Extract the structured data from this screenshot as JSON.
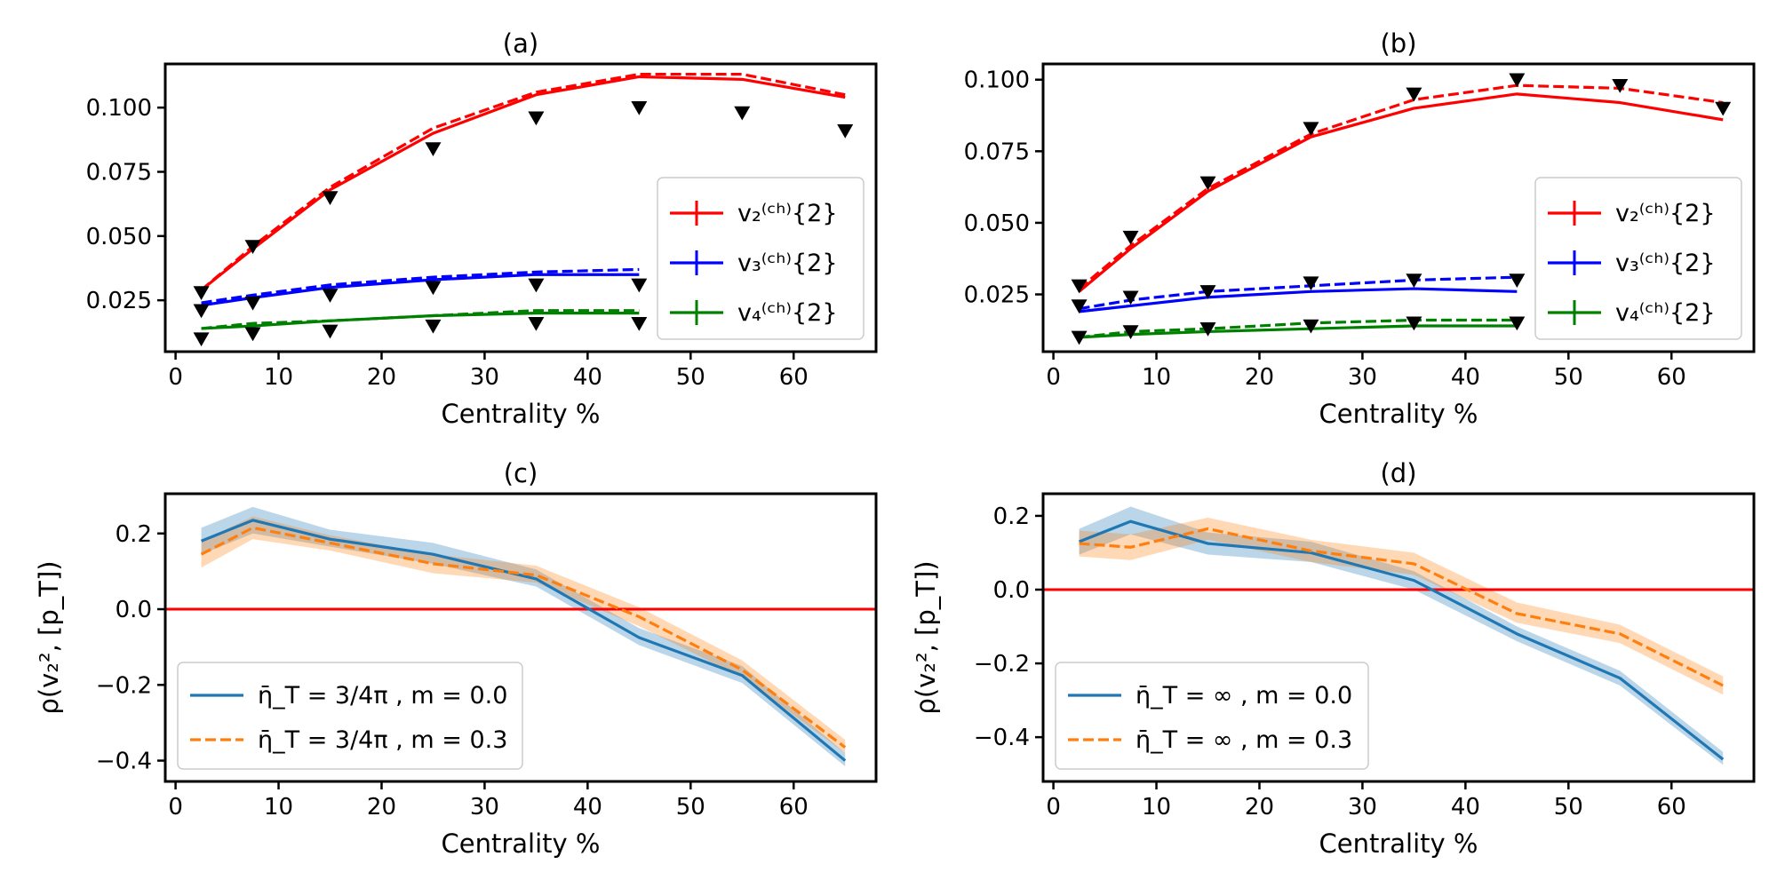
{
  "colors": {
    "red": "#ff0000",
    "blue": "#0000ff",
    "green": "#008000",
    "mpl_blue": "#1f77b4",
    "mpl_orange": "#ff7f0e",
    "data": "#000000"
  },
  "chart_data": [
    {
      "id": "a",
      "type": "line",
      "title": "(a)",
      "xlabel": "Centrality %",
      "ylabel": "",
      "xlim": [
        -1,
        68
      ],
      "ylim": [
        0.005,
        0.117
      ],
      "xticks": [
        0,
        10,
        20,
        30,
        40,
        50,
        60
      ],
      "yticks": [
        0.025,
        0.05,
        0.075,
        0.1
      ],
      "ytick_labels": [
        "0.025",
        "0.050",
        "0.075",
        "0.100"
      ],
      "legend_position": "lower-right",
      "legend": [
        {
          "text": "v₂⁽ᶜʰ⁾{2}",
          "color": "#ff0000"
        },
        {
          "text": "v₃⁽ᶜʰ⁾{2}",
          "color": "#0000ff"
        },
        {
          "text": "v₄⁽ᶜʰ⁾{2}",
          "color": "#008000"
        }
      ],
      "series": [
        {
          "name": "v2 solid",
          "color": "#ff0000",
          "dash": false,
          "x": [
            2.5,
            7.5,
            15,
            25,
            35,
            45,
            55,
            65
          ],
          "y": [
            0.029,
            0.045,
            0.068,
            0.09,
            0.105,
            0.112,
            0.111,
            0.104
          ]
        },
        {
          "name": "v2 dashed",
          "color": "#ff0000",
          "dash": true,
          "x": [
            2.5,
            7.5,
            15,
            25,
            35,
            45,
            55,
            65
          ],
          "y": [
            0.029,
            0.046,
            0.069,
            0.092,
            0.106,
            0.113,
            0.113,
            0.105
          ]
        },
        {
          "name": "v3 solid",
          "color": "#0000ff",
          "dash": false,
          "x": [
            2.5,
            7.5,
            15,
            25,
            35,
            45
          ],
          "y": [
            0.023,
            0.026,
            0.03,
            0.033,
            0.035,
            0.035
          ]
        },
        {
          "name": "v3 dashed",
          "color": "#0000ff",
          "dash": true,
          "x": [
            2.5,
            7.5,
            15,
            25,
            35,
            45
          ],
          "y": [
            0.024,
            0.027,
            0.031,
            0.034,
            0.036,
            0.037
          ]
        },
        {
          "name": "v4 solid",
          "color": "#008000",
          "dash": false,
          "x": [
            2.5,
            7.5,
            15,
            25,
            35,
            45
          ],
          "y": [
            0.014,
            0.015,
            0.017,
            0.019,
            0.02,
            0.02
          ]
        },
        {
          "name": "v4 dashed",
          "color": "#008000",
          "dash": true,
          "x": [
            2.5,
            7.5,
            15,
            25,
            35,
            45
          ],
          "y": [
            0.014,
            0.016,
            0.017,
            0.019,
            0.021,
            0.021
          ]
        }
      ],
      "markers": [
        {
          "x": [
            2.5,
            7.5,
            15,
            25,
            35,
            45,
            55,
            65
          ],
          "y": [
            0.028,
            0.046,
            0.065,
            0.084,
            0.096,
            0.1,
            0.098,
            0.091
          ]
        },
        {
          "x": [
            2.5,
            7.5,
            15,
            25,
            35,
            45
          ],
          "y": [
            0.021,
            0.024,
            0.027,
            0.03,
            0.031,
            0.031
          ]
        },
        {
          "x": [
            2.5,
            7.5,
            15,
            25,
            35,
            45
          ],
          "y": [
            0.01,
            0.012,
            0.013,
            0.015,
            0.016,
            0.016
          ]
        }
      ],
      "hline": null,
      "bands": []
    },
    {
      "id": "b",
      "type": "line",
      "title": "(b)",
      "xlabel": "Centrality %",
      "ylabel": "",
      "xlim": [
        -1,
        68
      ],
      "ylim": [
        0.005,
        0.1055
      ],
      "xticks": [
        0,
        10,
        20,
        30,
        40,
        50,
        60
      ],
      "yticks": [
        0.025,
        0.05,
        0.075,
        0.1
      ],
      "ytick_labels": [
        "0.025",
        "0.050",
        "0.075",
        "0.100"
      ],
      "legend_position": "lower-right",
      "legend": [
        {
          "text": "v₂⁽ᶜʰ⁾{2}",
          "color": "#ff0000"
        },
        {
          "text": "v₃⁽ᶜʰ⁾{2}",
          "color": "#0000ff"
        },
        {
          "text": "v₄⁽ᶜʰ⁾{2}",
          "color": "#008000"
        }
      ],
      "series": [
        {
          "name": "v2 solid",
          "color": "#ff0000",
          "dash": false,
          "x": [
            2.5,
            7.5,
            15,
            25,
            35,
            45,
            55,
            65
          ],
          "y": [
            0.026,
            0.041,
            0.061,
            0.08,
            0.09,
            0.095,
            0.092,
            0.086
          ]
        },
        {
          "name": "v2 dashed",
          "color": "#ff0000",
          "dash": true,
          "x": [
            2.5,
            7.5,
            15,
            25,
            35,
            45,
            55,
            65
          ],
          "y": [
            0.027,
            0.042,
            0.062,
            0.081,
            0.093,
            0.098,
            0.097,
            0.092
          ]
        },
        {
          "name": "v3 solid",
          "color": "#0000ff",
          "dash": false,
          "x": [
            2.5,
            7.5,
            15,
            25,
            35,
            45
          ],
          "y": [
            0.019,
            0.021,
            0.024,
            0.026,
            0.027,
            0.026
          ]
        },
        {
          "name": "v3 dashed",
          "color": "#0000ff",
          "dash": true,
          "x": [
            2.5,
            7.5,
            15,
            25,
            35,
            45
          ],
          "y": [
            0.02,
            0.023,
            0.026,
            0.028,
            0.03,
            0.031
          ]
        },
        {
          "name": "v4 solid",
          "color": "#008000",
          "dash": false,
          "x": [
            2.5,
            7.5,
            15,
            25,
            35,
            45
          ],
          "y": [
            0.01,
            0.011,
            0.012,
            0.013,
            0.014,
            0.014
          ]
        },
        {
          "name": "v4 dashed",
          "color": "#008000",
          "dash": true,
          "x": [
            2.5,
            7.5,
            15,
            25,
            35,
            45
          ],
          "y": [
            0.01,
            0.012,
            0.013,
            0.015,
            0.016,
            0.016
          ]
        }
      ],
      "markers": [
        {
          "x": [
            2.5,
            7.5,
            15,
            25,
            35,
            45,
            55,
            65
          ],
          "y": [
            0.028,
            0.045,
            0.064,
            0.083,
            0.095,
            0.1,
            0.098,
            0.09
          ]
        },
        {
          "x": [
            2.5,
            7.5,
            15,
            25,
            35,
            45
          ],
          "y": [
            0.021,
            0.024,
            0.026,
            0.029,
            0.03,
            0.03
          ]
        },
        {
          "x": [
            2.5,
            7.5,
            15,
            25,
            35,
            45
          ],
          "y": [
            0.01,
            0.012,
            0.013,
            0.014,
            0.015,
            0.015
          ]
        }
      ],
      "hline": null,
      "bands": []
    },
    {
      "id": "c",
      "type": "line",
      "title": "(c)",
      "xlabel": "Centrality %",
      "ylabel": "ρ(v₂², [p_T])",
      "xlim": [
        -1,
        68
      ],
      "ylim": [
        -0.455,
        0.305
      ],
      "xticks": [
        0,
        10,
        20,
        30,
        40,
        50,
        60
      ],
      "yticks": [
        -0.4,
        -0.2,
        0.0,
        0.2
      ],
      "ytick_labels": [
        "−0.4",
        "−0.2",
        "0.0",
        "0.2"
      ],
      "legend_position": "lower-left",
      "legend": [
        {
          "text": "η̄_T = 3/4π , m = 0.0",
          "color": "#1f77b4",
          "dash": false
        },
        {
          "text": "η̄_T = 3/4π , m = 0.3",
          "color": "#ff7f0e",
          "dash": true
        }
      ],
      "series": [
        {
          "name": "m=0.0",
          "color": "#1f77b4",
          "dash": false,
          "x": [
            2.5,
            7.5,
            15,
            25,
            35,
            45,
            55,
            65
          ],
          "y": [
            0.18,
            0.235,
            0.185,
            0.145,
            0.08,
            -0.075,
            -0.175,
            -0.4
          ]
        },
        {
          "name": "m=0.3",
          "color": "#ff7f0e",
          "dash": true,
          "x": [
            2.5,
            7.5,
            15,
            25,
            35,
            45,
            55,
            65
          ],
          "y": [
            0.145,
            0.215,
            0.175,
            0.12,
            0.09,
            -0.02,
            -0.16,
            -0.365
          ]
        }
      ],
      "bands": [
        {
          "color": "#1f77b4",
          "x": [
            2.5,
            7.5,
            15,
            25,
            35,
            45,
            55,
            65
          ],
          "lo": [
            0.145,
            0.2,
            0.165,
            0.12,
            0.06,
            -0.095,
            -0.195,
            -0.415
          ],
          "hi": [
            0.215,
            0.27,
            0.21,
            0.175,
            0.105,
            -0.05,
            -0.15,
            -0.38
          ]
        },
        {
          "color": "#ff7f0e",
          "x": [
            2.5,
            7.5,
            15,
            25,
            35,
            45,
            55,
            65
          ],
          "lo": [
            0.11,
            0.185,
            0.155,
            0.095,
            0.07,
            -0.045,
            -0.18,
            -0.38
          ],
          "hi": [
            0.18,
            0.245,
            0.195,
            0.145,
            0.115,
            0.005,
            -0.135,
            -0.345
          ]
        }
      ],
      "markers": [],
      "hline": {
        "y": 0.0,
        "color": "#ff0000"
      }
    },
    {
      "id": "d",
      "type": "line",
      "title": "(d)",
      "xlabel": "Centrality %",
      "ylabel": "ρ(v₂², [p_T])",
      "xlim": [
        -1,
        68
      ],
      "ylim": [
        -0.52,
        0.26
      ],
      "xticks": [
        0,
        10,
        20,
        30,
        40,
        50,
        60
      ],
      "yticks": [
        -0.4,
        -0.2,
        0.0,
        0.2
      ],
      "ytick_labels": [
        "−0.4",
        "−0.2",
        "0.0",
        "0.2"
      ],
      "legend_position": "lower-left",
      "legend": [
        {
          "text": "η̄_T = ∞ , m = 0.0",
          "color": "#1f77b4",
          "dash": false
        },
        {
          "text": "η̄_T = ∞ , m = 0.3",
          "color": "#ff7f0e",
          "dash": true
        }
      ],
      "series": [
        {
          "name": "m=0.0",
          "color": "#1f77b4",
          "dash": false,
          "x": [
            2.5,
            7.5,
            15,
            25,
            35,
            45,
            55,
            65
          ],
          "y": [
            0.13,
            0.185,
            0.125,
            0.1,
            0.025,
            -0.12,
            -0.24,
            -0.46
          ]
        },
        {
          "name": "m=0.3",
          "color": "#ff7f0e",
          "dash": true,
          "x": [
            2.5,
            7.5,
            15,
            25,
            35,
            45,
            55,
            65
          ],
          "y": [
            0.125,
            0.115,
            0.165,
            0.105,
            0.07,
            -0.065,
            -0.12,
            -0.26
          ]
        }
      ],
      "bands": [
        {
          "color": "#1f77b4",
          "x": [
            2.5,
            7.5,
            15,
            25,
            35,
            45,
            55,
            65
          ],
          "lo": [
            0.095,
            0.15,
            0.095,
            0.075,
            0.0,
            -0.14,
            -0.26,
            -0.475
          ],
          "hi": [
            0.165,
            0.225,
            0.155,
            0.13,
            0.05,
            -0.1,
            -0.22,
            -0.44
          ]
        },
        {
          "color": "#ff7f0e",
          "x": [
            2.5,
            7.5,
            15,
            25,
            35,
            45,
            55,
            65
          ],
          "lo": [
            0.09,
            0.08,
            0.135,
            0.075,
            0.04,
            -0.09,
            -0.145,
            -0.285
          ],
          "hi": [
            0.16,
            0.15,
            0.195,
            0.135,
            0.1,
            -0.035,
            -0.095,
            -0.235
          ]
        }
      ],
      "markers": [],
      "hline": {
        "y": 0.0,
        "color": "#ff0000"
      }
    }
  ]
}
